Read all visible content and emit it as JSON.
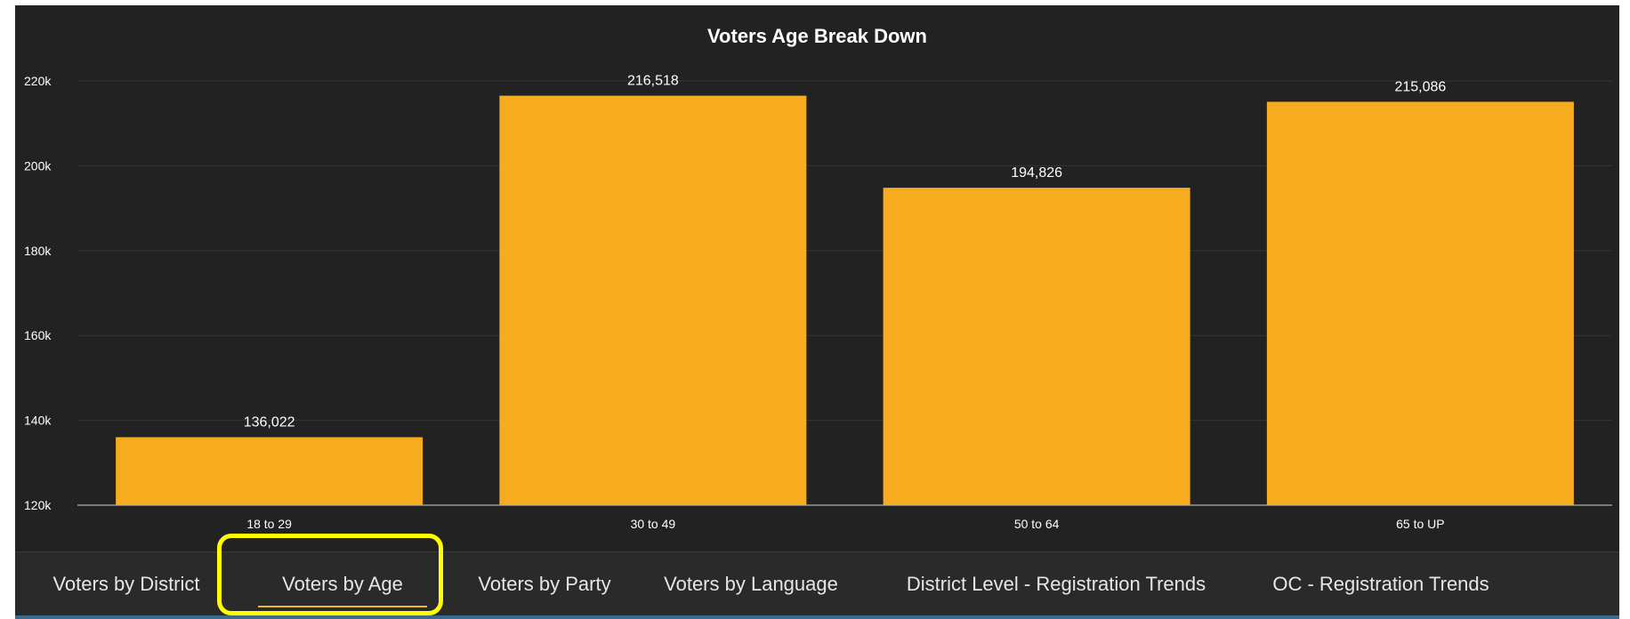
{
  "chart_data": {
    "type": "bar",
    "title": "Voters Age Break Down",
    "categories": [
      "18 to 29",
      "30 to 49",
      "50 to 64",
      "65 to UP"
    ],
    "values": [
      136022,
      216518,
      194826,
      215086
    ],
    "data_labels": [
      "136,022",
      "216,518",
      "194,826",
      "215,086"
    ],
    "y_ticks": [
      120000,
      140000,
      160000,
      180000,
      200000,
      220000
    ],
    "y_tick_labels": [
      "120k",
      "140k",
      "160k",
      "180k",
      "200k",
      "220k"
    ],
    "ylim": [
      120000,
      220000
    ],
    "xlabel": "",
    "ylabel": "",
    "grid": true,
    "legend": "none"
  },
  "colors": {
    "bar": "#f7ab1f",
    "background": "#222222",
    "grid": "#353535",
    "text": "#ffffff",
    "highlight": "#ffff00"
  },
  "tabs": [
    {
      "label": "Voters by District",
      "active": false
    },
    {
      "label": "Voters by Age",
      "active": true
    },
    {
      "label": "Voters by Party",
      "active": false
    },
    {
      "label": "Voters by Language",
      "active": false
    },
    {
      "label": "District Level - Registration Trends",
      "active": false
    },
    {
      "label": "OC - Registration Trends",
      "active": false
    }
  ]
}
